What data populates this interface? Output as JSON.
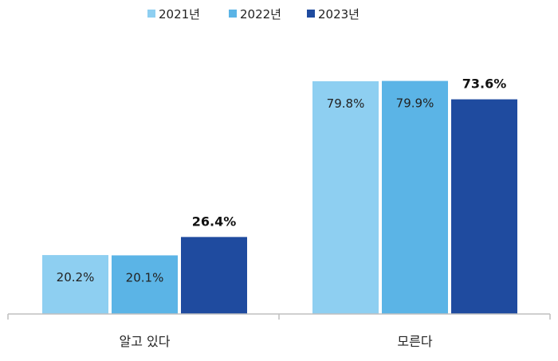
{
  "chart_data": {
    "type": "bar",
    "categories": [
      "알고 있다",
      "모른다"
    ],
    "series": [
      {
        "name": "2021년",
        "values": [
          20.2,
          79.8
        ],
        "labels": [
          "20.2%",
          "79.8%"
        ],
        "color": "#8ecff1",
        "label_style": "inside"
      },
      {
        "name": "2022년",
        "values": [
          20.1,
          79.9
        ],
        "labels": [
          "20.1%",
          "79.9%"
        ],
        "color": "#5bb4e6",
        "label_style": "inside"
      },
      {
        "name": "2023년",
        "values": [
          26.4,
          73.6
        ],
        "labels": [
          "26.4%",
          "73.6%"
        ],
        "color": "#1f4b9f",
        "label_style": "above-bold"
      }
    ],
    "ylim": [
      0,
      100
    ],
    "grid": false,
    "legend_position": "top-center",
    "title": "",
    "xlabel": "",
    "ylabel": ""
  }
}
